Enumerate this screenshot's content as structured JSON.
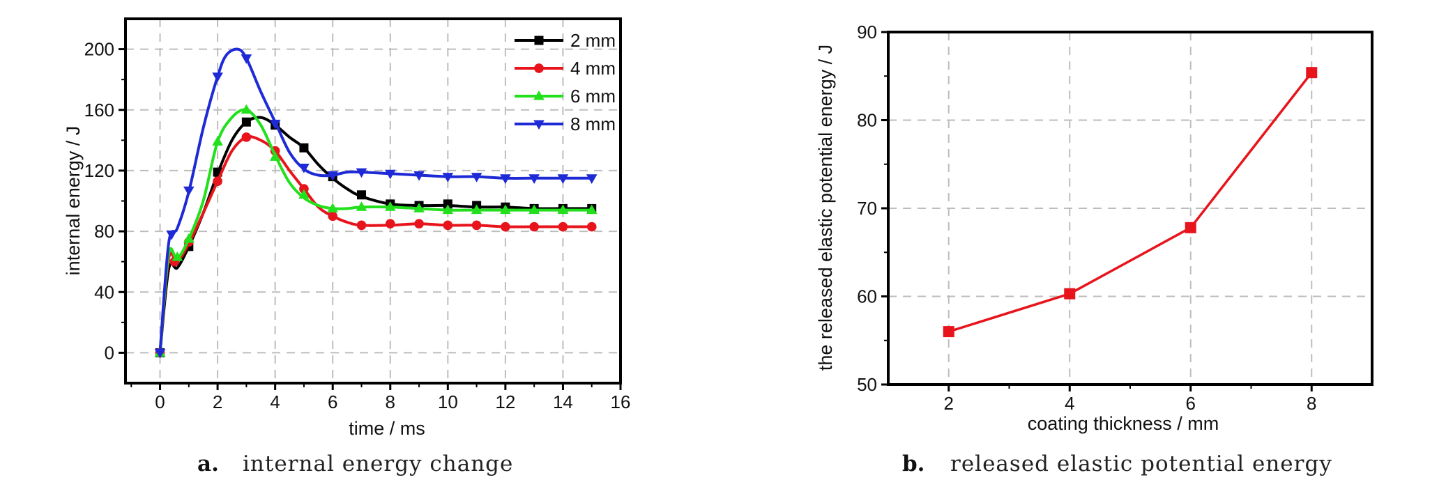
{
  "chart_data": [
    {
      "type": "line",
      "caption_letter": "a.",
      "caption_text": "internal energy change",
      "xlabel": "time / ms",
      "ylabel": "internal energy / J",
      "xlim": [
        -1.2,
        16
      ],
      "ylim": [
        -20,
        220
      ],
      "xticks": [
        0,
        2,
        4,
        6,
        8,
        10,
        12,
        14,
        16
      ],
      "yticks": [
        0,
        40,
        80,
        120,
        160,
        200
      ],
      "grid": true,
      "legend_position": "top-right",
      "series": [
        {
          "name": "2 mm",
          "color": "#000000",
          "marker": "square",
          "curve": [
            [
              0,
              0
            ],
            [
              0.3,
              55
            ],
            [
              0.6,
              56
            ],
            [
              1,
              70
            ],
            [
              1.5,
              92
            ],
            [
              2,
              118
            ],
            [
              2.5,
              140
            ],
            [
              3,
              152
            ],
            [
              3.5,
              155
            ],
            [
              4,
              150
            ],
            [
              4.5,
              142
            ],
            [
              5,
              135
            ],
            [
              5.5,
              124
            ],
            [
              6,
              115
            ],
            [
              6.5,
              108
            ],
            [
              7,
              103
            ],
            [
              8,
              98
            ],
            [
              9,
              97
            ],
            [
              10,
              97
            ],
            [
              11,
              96
            ],
            [
              12,
              96
            ],
            [
              13,
              95
            ],
            [
              14,
              95
            ],
            [
              15,
              95
            ]
          ],
          "markers": [
            [
              0,
              0
            ],
            [
              1,
              70
            ],
            [
              2,
              119
            ],
            [
              3,
              152
            ],
            [
              4,
              150
            ],
            [
              5,
              135
            ],
            [
              6,
              116
            ],
            [
              7,
              104
            ],
            [
              8,
              98
            ],
            [
              9,
              97
            ],
            [
              10,
              98
            ],
            [
              11,
              97
            ],
            [
              12,
              96
            ],
            [
              13,
              95
            ],
            [
              14,
              95
            ],
            [
              15,
              95
            ]
          ]
        },
        {
          "name": "4 mm",
          "color": "#e8141c",
          "marker": "circle",
          "curve": [
            [
              0,
              0
            ],
            [
              0.3,
              62
            ],
            [
              0.6,
              60
            ],
            [
              1,
              72
            ],
            [
              1.5,
              92
            ],
            [
              2,
              113
            ],
            [
              2.5,
              133
            ],
            [
              3,
              142
            ],
            [
              3.5,
              140
            ],
            [
              4,
              133
            ],
            [
              4.5,
              120
            ],
            [
              5,
              108
            ],
            [
              5.5,
              96
            ],
            [
              6,
              90
            ],
            [
              6.5,
              86
            ],
            [
              7,
              84
            ],
            [
              8,
              84
            ],
            [
              9,
              85
            ],
            [
              10,
              84
            ],
            [
              11,
              84
            ],
            [
              12,
              83
            ],
            [
              13,
              83
            ],
            [
              14,
              83
            ],
            [
              15,
              83
            ]
          ],
          "markers": [
            [
              0,
              0
            ],
            [
              0.5,
              60
            ],
            [
              1,
              73
            ],
            [
              2,
              113
            ],
            [
              3,
              142
            ],
            [
              4,
              133
            ],
            [
              5,
              108
            ],
            [
              6,
              90
            ],
            [
              7,
              84
            ],
            [
              8,
              85
            ],
            [
              9,
              85
            ],
            [
              10,
              84
            ],
            [
              11,
              84
            ],
            [
              12,
              83
            ],
            [
              13,
              83
            ],
            [
              14,
              83
            ],
            [
              15,
              83
            ]
          ]
        },
        {
          "name": "6 mm",
          "color": "#22e01c",
          "marker": "triangle-up",
          "curve": [
            [
              0,
              0
            ],
            [
              0.3,
              65
            ],
            [
              0.6,
              62
            ],
            [
              1,
              75
            ],
            [
              1.5,
              100
            ],
            [
              2,
              139
            ],
            [
              2.5,
              155
            ],
            [
              3,
              160
            ],
            [
              3.5,
              150
            ],
            [
              4,
              130
            ],
            [
              4.5,
              112
            ],
            [
              5,
              102
            ],
            [
              5.5,
              97
            ],
            [
              6,
              95
            ],
            [
              6.5,
              95
            ],
            [
              7,
              96
            ],
            [
              8,
              96
            ],
            [
              9,
              95
            ],
            [
              10,
              94
            ],
            [
              11,
              94
            ],
            [
              12,
              94
            ],
            [
              13,
              94
            ],
            [
              14,
              94
            ],
            [
              15,
              94
            ]
          ],
          "markers": [
            [
              0,
              0
            ],
            [
              0.6,
              63
            ],
            [
              1,
              75
            ],
            [
              2,
              139
            ],
            [
              3,
              160
            ],
            [
              4,
              129
            ],
            [
              5,
              104
            ],
            [
              6,
              95
            ],
            [
              7,
              96
            ],
            [
              8,
              96
            ],
            [
              9,
              95
            ],
            [
              10,
              94
            ],
            [
              11,
              94
            ],
            [
              12,
              94
            ],
            [
              13,
              94
            ],
            [
              14,
              94
            ],
            [
              15,
              94
            ]
          ]
        },
        {
          "name": "8 mm",
          "color": "#1e2ad6",
          "marker": "triangle-down",
          "curve": [
            [
              0,
              0
            ],
            [
              0.3,
              72
            ],
            [
              0.6,
              82
            ],
            [
              1,
              106
            ],
            [
              1.5,
              148
            ],
            [
              2,
              182
            ],
            [
              2.3,
              196
            ],
            [
              2.7,
              200
            ],
            [
              3,
              194
            ],
            [
              3.5,
              172
            ],
            [
              4,
              152
            ],
            [
              4.5,
              132
            ],
            [
              5,
              121
            ],
            [
              5.5,
              117
            ],
            [
              6,
              117
            ],
            [
              6.5,
              119
            ],
            [
              7,
              119
            ],
            [
              8,
              118
            ],
            [
              9,
              117
            ],
            [
              10,
              116
            ],
            [
              11,
              116
            ],
            [
              12,
              115
            ],
            [
              13,
              115
            ],
            [
              14,
              115
            ],
            [
              15,
              115
            ]
          ],
          "markers": [
            [
              0,
              0
            ],
            [
              0.4,
              78
            ],
            [
              1,
              107
            ],
            [
              2,
              182
            ],
            [
              3,
              194
            ],
            [
              4,
              151
            ],
            [
              5,
              122
            ],
            [
              6,
              117
            ],
            [
              7,
              119
            ],
            [
              8,
              118
            ],
            [
              9,
              117
            ],
            [
              10,
              116
            ],
            [
              11,
              116
            ],
            [
              12,
              115
            ],
            [
              13,
              115
            ],
            [
              14,
              115
            ],
            [
              15,
              115
            ]
          ]
        }
      ]
    },
    {
      "type": "line",
      "caption_letter": "b.",
      "caption_text": "released elastic potential energy",
      "xlabel": "coating thickness / mm",
      "ylabel": "the released elastic potential energy / J",
      "xlim": [
        1,
        9
      ],
      "ylim": [
        50,
        90
      ],
      "xticks": [
        2,
        4,
        6,
        8
      ],
      "yticks": [
        50,
        60,
        70,
        80,
        90
      ],
      "grid": true,
      "series": [
        {
          "name": "",
          "color": "#e8141c",
          "marker": "square",
          "curve": [
            [
              2,
              56
            ],
            [
              4,
              60.3
            ],
            [
              6,
              67.8
            ],
            [
              8,
              85.4
            ]
          ],
          "markers": [
            [
              2,
              56
            ],
            [
              4,
              60.3
            ],
            [
              6,
              67.8
            ],
            [
              8,
              85.4
            ]
          ]
        }
      ]
    }
  ]
}
